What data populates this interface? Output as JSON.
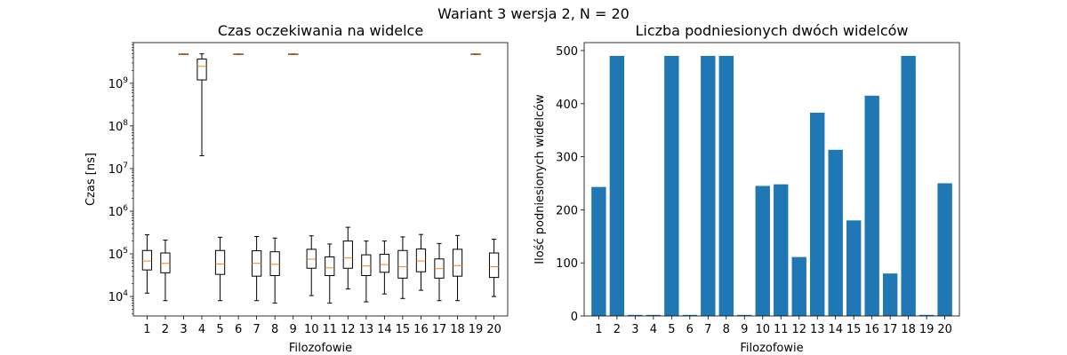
{
  "figure": {
    "suptitle": "Wariant 3 wersja 2, N = 20"
  },
  "chart_data": [
    {
      "type": "boxplot",
      "title": "Czas oczekiwania na widelce",
      "xlabel": "Filozofowie",
      "ylabel": "Czas [ns]",
      "yscale": "log",
      "ylim": [
        3500,
        9000000000
      ],
      "yticks": [
        {
          "value": 10000,
          "base": "10",
          "exp": "4"
        },
        {
          "value": 100000,
          "base": "10",
          "exp": "5"
        },
        {
          "value": 1000000,
          "base": "10",
          "exp": "6"
        },
        {
          "value": 10000000,
          "base": "10",
          "exp": "7"
        },
        {
          "value": 100000000,
          "base": "10",
          "exp": "8"
        },
        {
          "value": 1000000000,
          "base": "10",
          "exp": "9"
        }
      ],
      "categories": [
        "1",
        "2",
        "3",
        "4",
        "5",
        "6",
        "7",
        "8",
        "9",
        "10",
        "11",
        "12",
        "13",
        "14",
        "15",
        "16",
        "17",
        "18",
        "19",
        "20"
      ],
      "boxes": [
        {
          "whislo": 12000,
          "q1": 42000,
          "med": 68000,
          "q3": 120000,
          "whishi": 280000
        },
        {
          "whislo": 8000,
          "q1": 36000,
          "med": 60000,
          "q3": 105000,
          "whishi": 210000
        },
        {
          "whislo": 4800000000,
          "q1": 4830000000,
          "med": 4850000000,
          "q3": 4870000000,
          "whishi": 4890000000
        },
        {
          "whislo": 20000000,
          "q1": 1200000000,
          "med": 2500000000,
          "q3": 3700000000,
          "whishi": 4900000000
        },
        {
          "whislo": 8000,
          "q1": 33000,
          "med": 58000,
          "q3": 120000,
          "whishi": 245000
        },
        {
          "whislo": 4800000000,
          "q1": 4830000000,
          "med": 4850000000,
          "q3": 4870000000,
          "whishi": 4890000000
        },
        {
          "whislo": 8000,
          "q1": 30000,
          "med": 60000,
          "q3": 118000,
          "whishi": 255000
        },
        {
          "whislo": 7000,
          "q1": 31000,
          "med": 57000,
          "q3": 112000,
          "whishi": 235000
        },
        {
          "whislo": 4800000000,
          "q1": 4830000000,
          "med": 4850000000,
          "q3": 4870000000,
          "whishi": 4890000000
        },
        {
          "whislo": 10500,
          "q1": 46000,
          "med": 75000,
          "q3": 128000,
          "whishi": 265000
        },
        {
          "whislo": 7000,
          "q1": 31000,
          "med": 47000,
          "q3": 85000,
          "whishi": 170000
        },
        {
          "whislo": 15000,
          "q1": 46000,
          "med": 80000,
          "q3": 200000,
          "whishi": 420000
        },
        {
          "whislo": 7500,
          "q1": 31000,
          "med": 52000,
          "q3": 95000,
          "whishi": 200000
        },
        {
          "whislo": 11500,
          "q1": 37000,
          "med": 56000,
          "q3": 98000,
          "whishi": 200000
        },
        {
          "whislo": 9000,
          "q1": 27000,
          "med": 50000,
          "q3": 120000,
          "whishi": 250000
        },
        {
          "whislo": 14000,
          "q1": 38000,
          "med": 68000,
          "q3": 130000,
          "whishi": 285000
        },
        {
          "whislo": 8000,
          "q1": 27000,
          "med": 45000,
          "q3": 76000,
          "whishi": 175000
        },
        {
          "whislo": 8000,
          "q1": 30000,
          "med": 53000,
          "q3": 128000,
          "whishi": 270000
        },
        {
          "whislo": 4800000000,
          "q1": 4830000000,
          "med": 4850000000,
          "q3": 4870000000,
          "whishi": 4890000000
        },
        {
          "whislo": 10000,
          "q1": 28000,
          "med": 50000,
          "q3": 105000,
          "whishi": 220000
        }
      ],
      "colors": {
        "box": "#000000",
        "median": "#ff7f0e"
      },
      "grid": false
    },
    {
      "type": "bar",
      "title": "Liczba podniesionych dwóch widelców",
      "xlabel": "Filozofowie",
      "ylabel": "Ilość podniesionych widelców",
      "ylim": [
        0,
        515
      ],
      "yticks": [
        0,
        100,
        200,
        300,
        400,
        500
      ],
      "categories": [
        "1",
        "2",
        "3",
        "4",
        "5",
        "6",
        "7",
        "8",
        "9",
        "10",
        "11",
        "12",
        "13",
        "14",
        "15",
        "16",
        "17",
        "18",
        "19",
        "20"
      ],
      "values": [
        243,
        490,
        2,
        2,
        490,
        2,
        490,
        490,
        2,
        245,
        248,
        111,
        383,
        313,
        180,
        415,
        80,
        490,
        2,
        250
      ],
      "colors": {
        "bar": "#1f77b4"
      },
      "grid": false
    }
  ]
}
